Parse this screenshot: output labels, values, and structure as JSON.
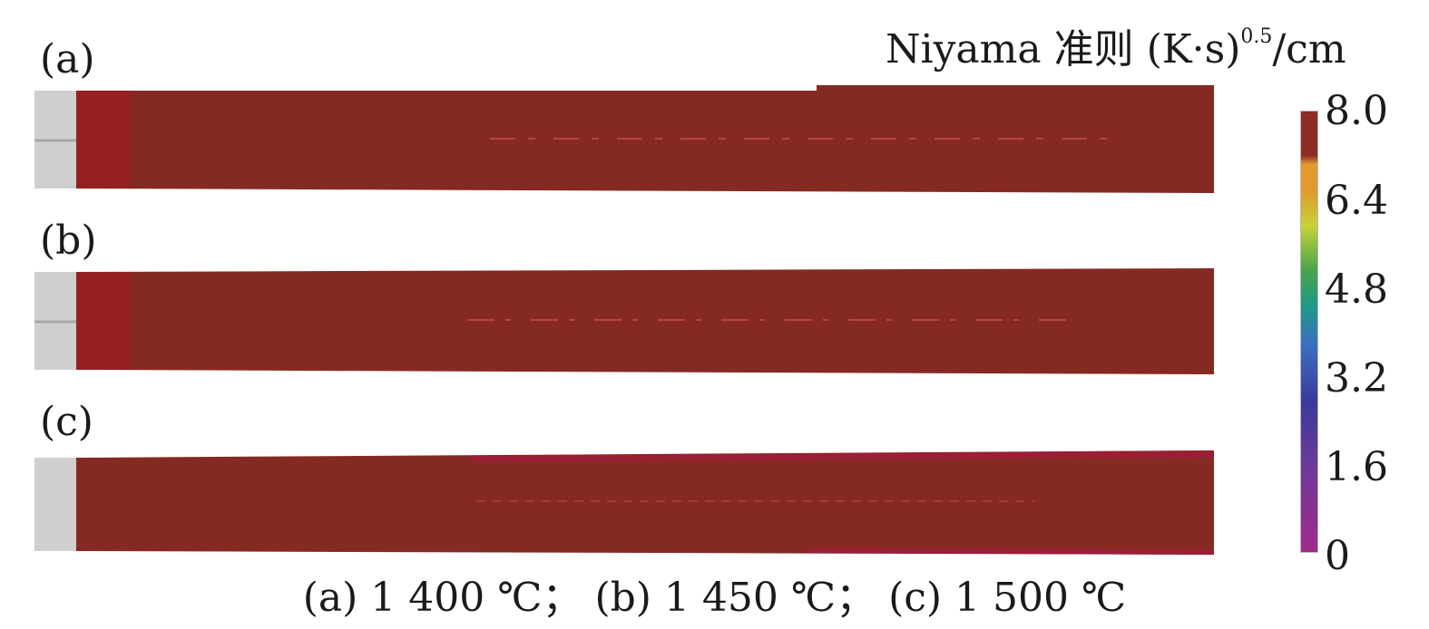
{
  "panels": [
    {
      "label": "(a)"
    },
    {
      "label": "(b)"
    },
    {
      "label": "(c)"
    }
  ],
  "legend": {
    "title_prefix": "Niyama 准则 (K·s)",
    "title_exponent": "0.5",
    "title_suffix": "/cm",
    "ticks": [
      "8.0",
      "6.4",
      "4.8",
      "3.2",
      "1.6",
      "0"
    ],
    "colors": [
      "#8b2d24",
      "#e09a2e",
      "#c5d23a",
      "#4aa34b",
      "#1e9a86",
      "#3a6fc0",
      "#3a3a9a",
      "#6b3a9a",
      "#a02a8a"
    ]
  },
  "colors": {
    "casting_body": "#852a22",
    "casting_edge": "#a01e2a",
    "riser": "#cfcfcf",
    "riser_line": "#a8a8a8",
    "defect_dash": "#c05050"
  },
  "caption": "(a) 1 400 ℃； (b) 1 450 ℃； (c) 1 500 ℃"
}
